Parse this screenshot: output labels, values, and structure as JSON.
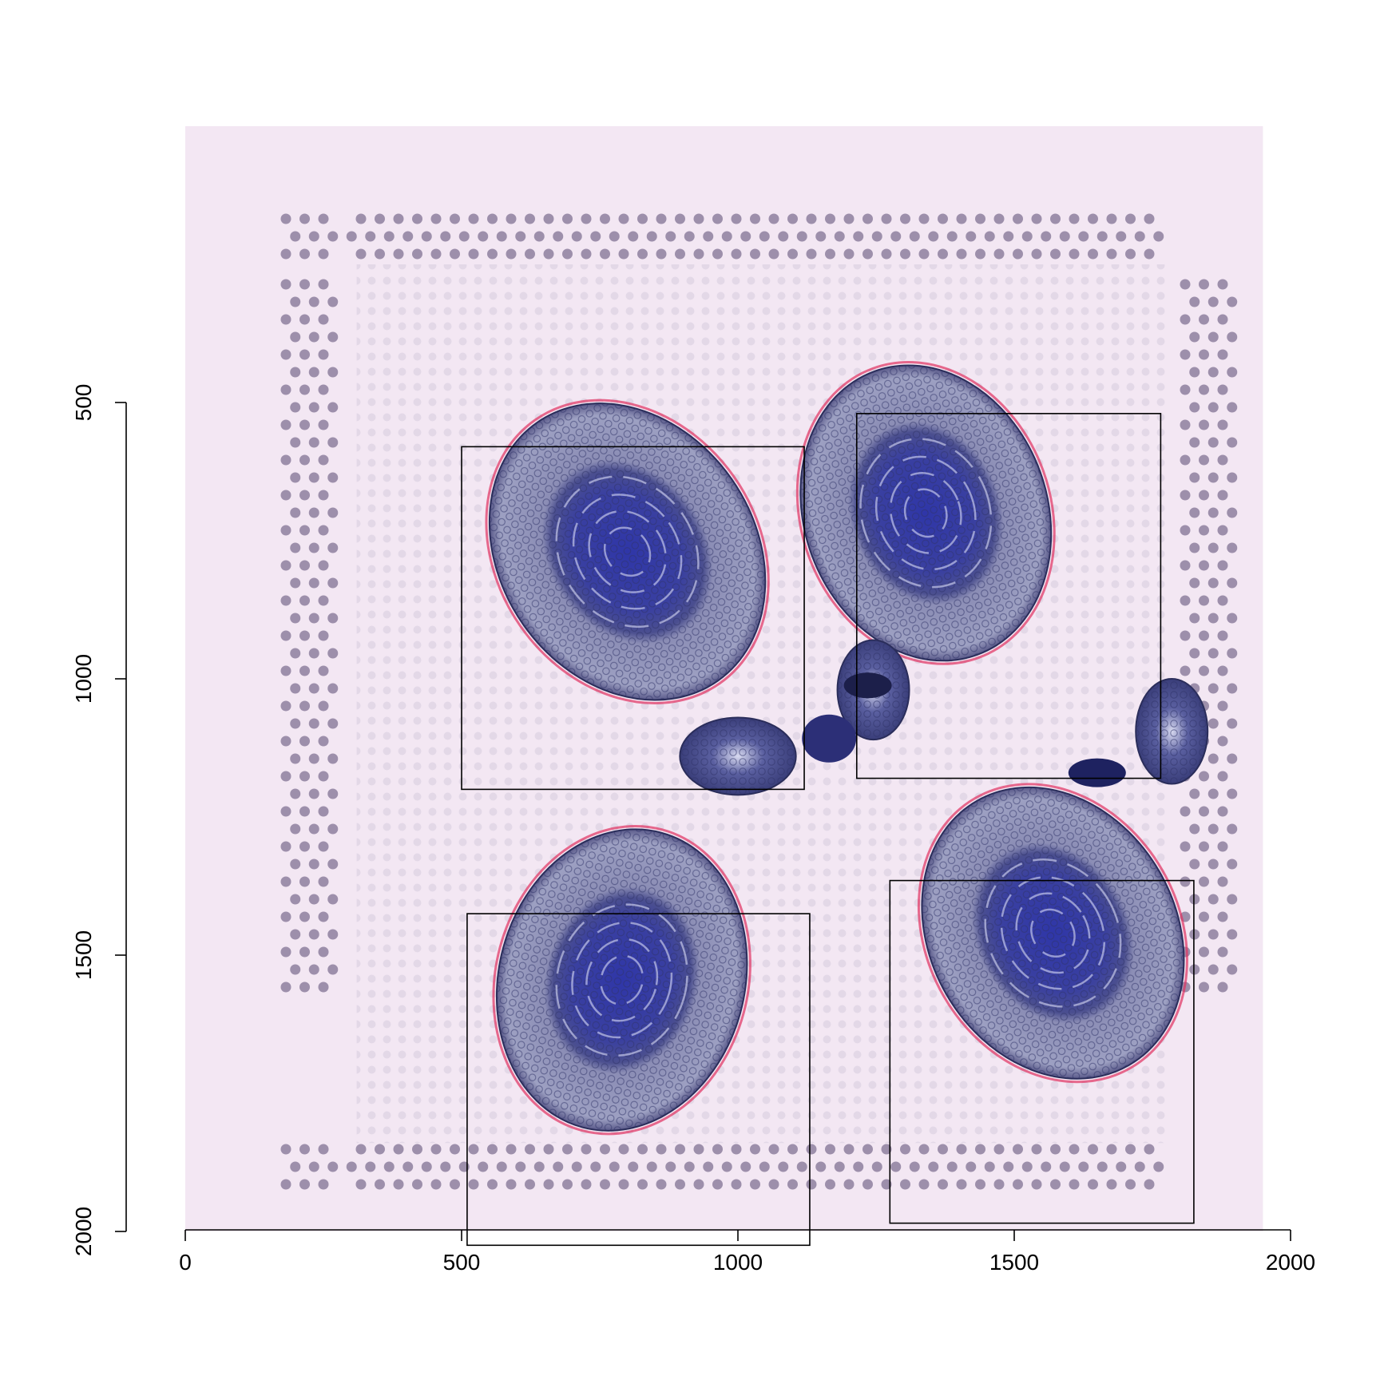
{
  "chart_data": {
    "type": "scatter",
    "title": "",
    "xlabel": "",
    "ylabel": "",
    "xlim": [
      0,
      1950
    ],
    "ylim": [
      2000,
      0
    ],
    "y_reversed": true,
    "x_ticks": [
      0,
      500,
      1000,
      1500,
      2000
    ],
    "y_ticks": [
      500,
      1000,
      1500,
      2000
    ],
    "background_image": "tissue-slide",
    "background_color": "#f3e7f3",
    "fiducial_spot_color": "#8d7f9e",
    "tissue_color": "#3a3f9a",
    "rings": [
      {
        "cx": 800,
        "cy": 770,
        "r": 460,
        "rot": -35
      },
      {
        "cx": 1340,
        "cy": 700,
        "r": 440,
        "rot": -20
      },
      {
        "cx": 790,
        "cy": 1545,
        "r": 445,
        "rot": 15
      },
      {
        "cx": 1570,
        "cy": 1460,
        "r": 445,
        "rot": -30
      }
    ],
    "small_sections": [
      {
        "cx": 1000,
        "cy": 1140,
        "rx": 105,
        "ry": 70
      },
      {
        "cx": 1245,
        "cy": 1020,
        "rx": 65,
        "ry": 90
      },
      {
        "cx": 1785,
        "cy": 1095,
        "rx": 65,
        "ry": 95
      }
    ],
    "boxes": [
      {
        "x0": 500,
        "y0": 580,
        "x1": 1120,
        "y1": 1200
      },
      {
        "x0": 1215,
        "y0": 520,
        "x1": 1765,
        "y1": 1180
      },
      {
        "x0": 510,
        "y0": 1425,
        "x1": 1130,
        "y1": 2025
      },
      {
        "x0": 1275,
        "y0": 1365,
        "x1": 1825,
        "y1": 1985
      }
    ]
  }
}
